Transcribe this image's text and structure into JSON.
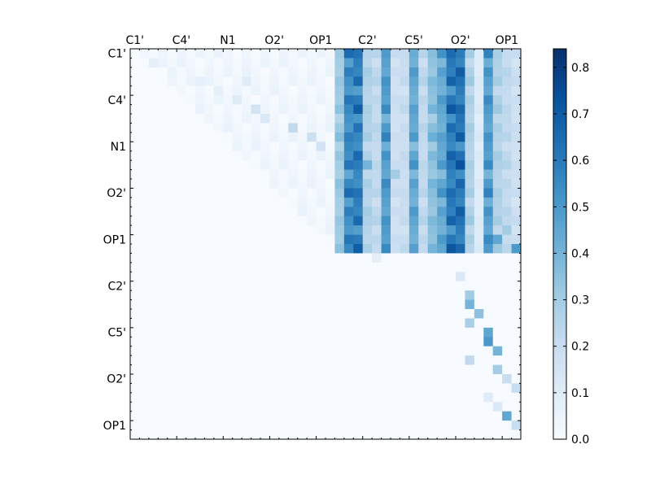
{
  "chart_data": {
    "type": "heatmap",
    "title": "",
    "xlabel": "",
    "ylabel": "",
    "size": 42,
    "tick_labels": [
      "C1'",
      "C4'",
      "N1",
      "O2'",
      "OP1",
      "C2'",
      "C5'",
      "O2'",
      "OP1"
    ],
    "tick_label_positions": [
      0,
      5,
      10,
      15,
      20,
      25,
      30,
      35,
      40
    ],
    "colorbar": {
      "vmin": 0.0,
      "vmax": 0.84,
      "ticks": [
        0.0,
        0.1,
        0.2,
        0.3,
        0.4,
        0.5,
        0.6,
        0.7,
        0.8
      ],
      "tick_labels": [
        "0.0",
        "0.1",
        "0.2",
        "0.3",
        "0.4",
        "0.5",
        "0.6",
        "0.7",
        "0.8"
      ],
      "colors": [
        "#f7fbff",
        "#deebf7",
        "#c6dbef",
        "#9ecae1",
        "#6baed6",
        "#4292c6",
        "#2171b5",
        "#08519c",
        "#08306b"
      ]
    },
    "dense_columns": {
      "comment_free": true,
      "cols": [
        22,
        23,
        24,
        25,
        26,
        27,
        28,
        29,
        30,
        31,
        32,
        33,
        34,
        35,
        36,
        37,
        38,
        39,
        40,
        41
      ],
      "base": [
        0.35,
        0.62,
        0.66,
        0.3,
        0.25,
        0.55,
        0.2,
        0.22,
        0.5,
        0.25,
        0.4,
        0.5,
        0.68,
        0.7,
        0.3,
        0.12,
        0.55,
        0.3,
        0.25,
        0.2
      ]
    },
    "upper_rows_end": 22,
    "diag_sparse": [
      [
        1,
        2,
        0.08
      ],
      [
        2,
        4,
        0.05
      ],
      [
        3,
        7,
        0.07
      ],
      [
        3,
        12,
        0.1
      ],
      [
        4,
        9,
        0.08
      ],
      [
        5,
        11,
        0.1
      ],
      [
        6,
        13,
        0.15
      ],
      [
        7,
        14,
        0.12
      ],
      [
        8,
        17,
        0.22
      ],
      [
        9,
        19,
        0.18
      ],
      [
        10,
        20,
        0.15
      ],
      [
        11,
        23,
        0.35
      ],
      [
        12,
        25,
        0.4
      ],
      [
        13,
        28,
        0.3
      ],
      [
        14,
        30,
        0.25
      ],
      [
        15,
        33,
        0.2
      ],
      [
        16,
        36,
        0.15
      ],
      [
        18,
        38,
        0.2
      ],
      [
        19,
        40,
        0.3
      ],
      [
        20,
        39,
        0.45
      ],
      [
        21,
        41,
        0.5
      ],
      [
        22,
        26,
        0.08
      ],
      [
        24,
        35,
        0.12
      ],
      [
        26,
        36,
        0.3
      ],
      [
        27,
        36,
        0.4
      ],
      [
        28,
        37,
        0.35
      ],
      [
        29,
        36,
        0.28
      ],
      [
        30,
        38,
        0.45
      ],
      [
        31,
        38,
        0.5
      ],
      [
        32,
        39,
        0.4
      ],
      [
        33,
        36,
        0.22
      ],
      [
        34,
        39,
        0.3
      ],
      [
        35,
        40,
        0.2
      ],
      [
        36,
        41,
        0.2
      ],
      [
        37,
        38,
        0.1
      ],
      [
        38,
        39,
        0.12
      ],
      [
        39,
        40,
        0.45
      ],
      [
        40,
        41,
        0.2
      ]
    ]
  }
}
